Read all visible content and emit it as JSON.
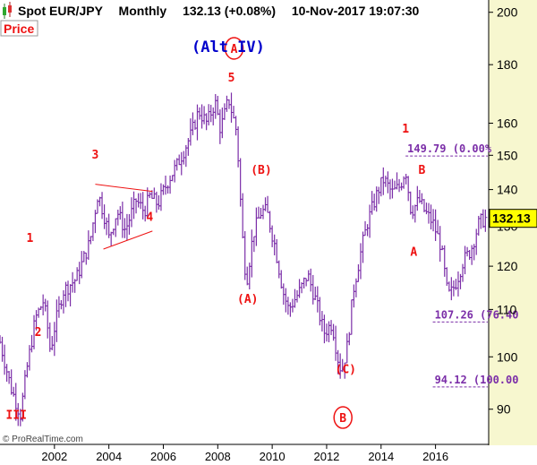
{
  "header": {
    "instrument": "Spot EUR/JPY",
    "period": "Monthly",
    "last_price": "132.13 (+0.08%)",
    "datetime": "10-Nov-2017 19:07:30"
  },
  "price_tab": "Price",
  "copyright": "© ProRealTime.com",
  "colors": {
    "candle": "#7b2ea8",
    "wave_label": "#ee1111",
    "fib": "#7b2ea8",
    "alt_label": "#0000cc",
    "last_price_box": "#ffff00",
    "axis_bg": "#f7f7cf"
  },
  "chart_data": {
    "type": "ohlc",
    "x_axis": {
      "ticks": [
        "2002",
        "2004",
        "2006",
        "2008",
        "2010",
        "2012",
        "2014",
        "2016"
      ],
      "range": [
        2000.0,
        2017.92
      ]
    },
    "y_axis": {
      "ticks": [
        90,
        100,
        110,
        120,
        130,
        140,
        150,
        160,
        180,
        200
      ],
      "scale": "log",
      "range": [
        84,
        205
      ]
    },
    "last_price": "132.13",
    "path": [
      [
        2000.0,
        103
      ],
      [
        2000.4,
        94
      ],
      [
        2000.75,
        89
      ],
      [
        2001.0,
        98
      ],
      [
        2001.3,
        108
      ],
      [
        2001.6,
        112
      ],
      [
        2001.75,
        106
      ],
      [
        2001.85,
        101
      ],
      [
        2002.0,
        106
      ],
      [
        2002.3,
        114
      ],
      [
        2002.8,
        117
      ],
      [
        2003.3,
        126
      ],
      [
        2003.6,
        139
      ],
      [
        2003.9,
        131
      ],
      [
        2004.0,
        127
      ],
      [
        2004.3,
        134
      ],
      [
        2004.6,
        129
      ],
      [
        2005.0,
        137
      ],
      [
        2005.3,
        134
      ],
      [
        2005.5,
        138
      ],
      [
        2005.8,
        136
      ],
      [
        2006.2,
        143
      ],
      [
        2006.5,
        147
      ],
      [
        2007.0,
        156
      ],
      [
        2007.3,
        164
      ],
      [
        2007.6,
        160
      ],
      [
        2007.9,
        167
      ],
      [
        2008.1,
        158
      ],
      [
        2008.4,
        168
      ],
      [
        2008.7,
        157
      ],
      [
        2008.9,
        128
      ],
      [
        2009.05,
        116
      ],
      [
        2009.3,
        128
      ],
      [
        2009.6,
        134
      ],
      [
        2009.8,
        134
      ],
      [
        2010.1,
        125
      ],
      [
        2010.4,
        114
      ],
      [
        2010.6,
        110
      ],
      [
        2011.0,
        114
      ],
      [
        2011.3,
        118
      ],
      [
        2011.6,
        112
      ],
      [
        2011.9,
        105
      ],
      [
        2012.2,
        107
      ],
      [
        2012.4,
        100
      ],
      [
        2012.55,
        97
      ],
      [
        2012.75,
        102
      ],
      [
        2013.0,
        115
      ],
      [
        2013.3,
        125
      ],
      [
        2013.5,
        131
      ],
      [
        2013.9,
        140
      ],
      [
        2014.1,
        143
      ],
      [
        2014.4,
        139
      ],
      [
        2014.7,
        141
      ],
      [
        2014.9,
        146
      ],
      [
        2015.1,
        134
      ],
      [
        2015.4,
        137
      ],
      [
        2015.6,
        134
      ],
      [
        2015.9,
        131
      ],
      [
        2016.2,
        125
      ],
      [
        2016.45,
        113
      ],
      [
        2016.6,
        114
      ],
      [
        2016.8,
        117
      ],
      [
        2017.0,
        121
      ],
      [
        2017.3,
        124
      ],
      [
        2017.6,
        131
      ],
      [
        2017.85,
        132.13
      ]
    ],
    "annotations": {
      "alt_label": "(Alt IV)",
      "big_labels": [
        {
          "text": "A",
          "x": 2008.6,
          "y": 186
        },
        {
          "text": "B",
          "x": 2012.6,
          "y": 88.5
        }
      ],
      "wave_labels": [
        {
          "text": "III",
          "x": 2000.6,
          "y": 88.3
        },
        {
          "text": "1",
          "x": 2001.1,
          "y": 126
        },
        {
          "text": "2",
          "x": 2001.4,
          "y": 104.3
        },
        {
          "text": "3",
          "x": 2003.5,
          "y": 149
        },
        {
          "text": "4",
          "x": 2005.5,
          "y": 131.5
        },
        {
          "text": "5",
          "x": 2008.5,
          "y": 174
        },
        {
          "text": "(A)",
          "x": 2009.1,
          "y": 111.5
        },
        {
          "text": "(B)",
          "x": 2009.6,
          "y": 144.5
        },
        {
          "text": "(C)",
          "x": 2012.7,
          "y": 96.8
        },
        {
          "text": "1",
          "x": 2014.9,
          "y": 157
        },
        {
          "text": "B",
          "x": 2015.5,
          "y": 144.5
        },
        {
          "text": "A",
          "x": 2015.2,
          "y": 122.5
        }
      ],
      "fib_levels": [
        {
          "label": "149.79 (0.00%",
          "value": 149.79,
          "x_start": 2014.9
        },
        {
          "label": "107.26 (76.40",
          "value": 107.26,
          "x_start": 2015.9
        },
        {
          "label": "94.12 (100.00",
          "value": 94.12,
          "x_start": 2015.9
        }
      ],
      "triangle": {
        "upper": [
          [
            2003.5,
            141.5
          ],
          [
            2005.6,
            139.5
          ]
        ],
        "lower": [
          [
            2003.8,
            124.2
          ],
          [
            2005.6,
            128.8
          ]
        ]
      }
    }
  }
}
